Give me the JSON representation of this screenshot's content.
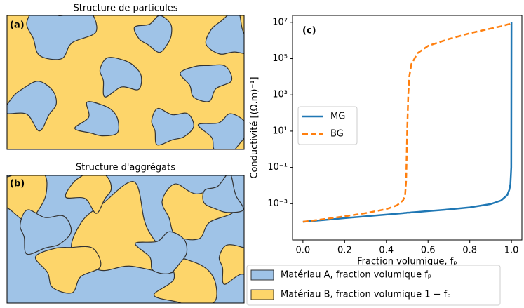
{
  "panels": [
    {
      "title": "Structure de particules",
      "label": "(a)"
    },
    {
      "title": "Structure d'aggrégats",
      "label": "(b)"
    }
  ],
  "legend": {
    "items": [
      {
        "label": "Matériau A, fraction volumique fₚ",
        "color": "#9fc3e7"
      },
      {
        "label": "Matériau B, fraction volumique 1 − fₚ",
        "color": "#fdd56a"
      }
    ]
  },
  "chart_data": {
    "type": "line",
    "annotation": "(c)",
    "xlabel": "Fraction volumique, fₚ",
    "ylabel": "Conductivité [(Ω.m)⁻¹]",
    "log_scale": true,
    "legend_position": "center left",
    "x": [
      0,
      0.1,
      0.2,
      0.3,
      0.4,
      0.45,
      0.48,
      0.49,
      0.495,
      0.5,
      0.505,
      0.51,
      0.52,
      0.55,
      0.6,
      0.7,
      0.8,
      0.9,
      0.95,
      0.98,
      0.99,
      0.995,
      0.999,
      1.0
    ],
    "series": [
      {
        "name": "MG",
        "color": "#1f77b4",
        "dashed": false,
        "values": [
          0.0001,
          0.000125,
          0.00016,
          0.0002,
          0.00025,
          0.00028,
          0.0003,
          0.00031,
          0.00031,
          0.00032,
          0.00032,
          0.00032,
          0.00033,
          0.00035,
          0.00039,
          0.00048,
          0.00062,
          0.00095,
          0.0015,
          0.003,
          0.006,
          0.012,
          0.1,
          10000000
        ]
      },
      {
        "name": "BG",
        "color": "#ff7f0e",
        "dashed": true,
        "values": [
          0.0001,
          0.00014,
          0.0002,
          0.0003,
          0.0005,
          0.0008,
          0.0015,
          0.003,
          0.02,
          10,
          1000,
          10000,
          50000,
          200000,
          500000,
          1200000,
          2500000,
          4500000,
          6000000,
          7500000,
          8000000,
          8500000,
          9000000,
          10000000
        ]
      }
    ],
    "xlim": [
      -0.05,
      1.05
    ],
    "xticks": [
      {
        "value": 0,
        "label": "0.0"
      },
      0.2,
      0.4,
      0.6,
      0.8,
      {
        "value": 1,
        "label": "1.0"
      }
    ],
    "ylim": [
      1e-05,
      24000000
    ],
    "yticks": [
      {
        "value": 0.001,
        "label": "10⁻³"
      },
      {
        "value": 0.1,
        "label": "10⁻¹"
      },
      {
        "value": 10,
        "label": "10¹"
      },
      {
        "value": 1000,
        "label": "10³"
      },
      {
        "value": 100000,
        "label": "10⁵"
      },
      {
        "value": 10000000,
        "label": "10⁷"
      }
    ]
  }
}
